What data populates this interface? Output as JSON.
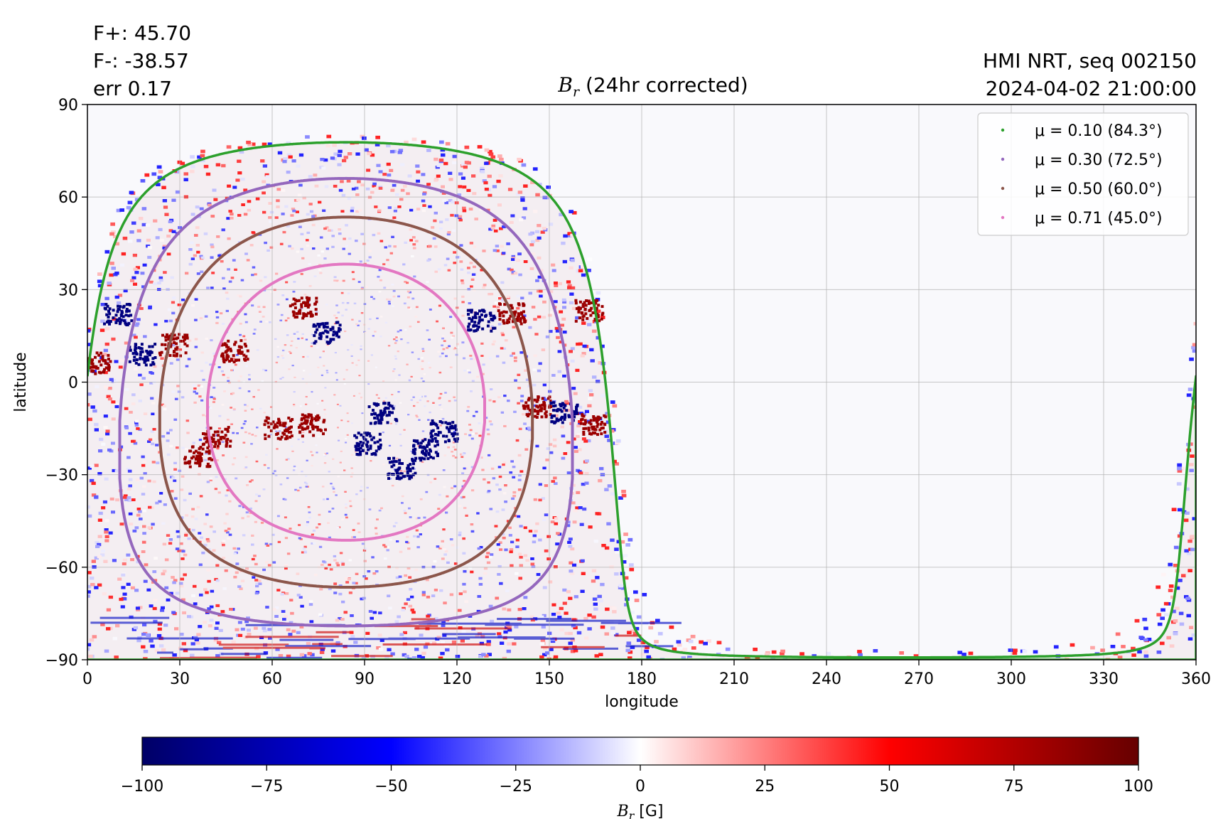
{
  "header": {
    "flux_pos": "F+: 45.70",
    "flux_neg": "F-: -38.57",
    "err": "err 0.17",
    "instrument": "HMI NRT, seq 002150",
    "datetime": "2024-04-02 21:00:00"
  },
  "chart_data": {
    "type": "heatmap",
    "title_symbol": "B",
    "title_sub": "r",
    "title_rest": " (24hr corrected)",
    "xlabel": "longitude",
    "ylabel": "latitude",
    "xlim": [
      0,
      360
    ],
    "ylim": [
      -90,
      90
    ],
    "xticks": [
      0,
      30,
      60,
      90,
      120,
      150,
      180,
      210,
      240,
      270,
      300,
      330,
      360
    ],
    "yticks": [
      -90,
      -60,
      -30,
      0,
      30,
      60,
      90
    ],
    "xtick_labels": [
      "0",
      "30",
      "60",
      "90",
      "120",
      "150",
      "180",
      "210",
      "240",
      "270",
      "300",
      "330",
      "360"
    ],
    "ytick_labels": [
      "−90",
      "−60",
      "−30",
      "0",
      "30",
      "60",
      "90"
    ],
    "grid": true,
    "legend_position": "top-right",
    "disk_center": {
      "lon": 84,
      "lat": -6.5
    },
    "series": [
      {
        "name": "μ = 0.10 (84.3°)",
        "mu": 0.1,
        "angle_deg": 84.3,
        "color": "#2ca02c"
      },
      {
        "name": "μ = 0.30 (72.5°)",
        "mu": 0.3,
        "angle_deg": 72.5,
        "color": "#9467bd"
      },
      {
        "name": "μ = 0.50 (60.0°)",
        "mu": 0.5,
        "angle_deg": 60.0,
        "color": "#8c564b"
      },
      {
        "name": "μ = 0.71 (45.0°)",
        "mu": 0.71,
        "angle_deg": 45.0,
        "color": "#e377c2"
      }
    ],
    "active_regions": [
      {
        "lon": 10,
        "lat": 22,
        "polarity": -1
      },
      {
        "lon": 18,
        "lat": 9,
        "polarity": -1
      },
      {
        "lon": 28,
        "lat": 12,
        "polarity": 1
      },
      {
        "lon": 3,
        "lat": 6,
        "polarity": 1
      },
      {
        "lon": 48,
        "lat": 10,
        "polarity": 1
      },
      {
        "lon": 36,
        "lat": -24,
        "polarity": 1
      },
      {
        "lon": 42,
        "lat": -18,
        "polarity": 1
      },
      {
        "lon": 62,
        "lat": -15,
        "polarity": 1
      },
      {
        "lon": 73,
        "lat": -14,
        "polarity": 1
      },
      {
        "lon": 78,
        "lat": 16,
        "polarity": -1
      },
      {
        "lon": 70,
        "lat": 24,
        "polarity": 1
      },
      {
        "lon": 96,
        "lat": -10,
        "polarity": -1
      },
      {
        "lon": 91,
        "lat": -20,
        "polarity": -1
      },
      {
        "lon": 102,
        "lat": -28,
        "polarity": -1
      },
      {
        "lon": 110,
        "lat": -22,
        "polarity": -1
      },
      {
        "lon": 116,
        "lat": -16,
        "polarity": -1
      },
      {
        "lon": 128,
        "lat": 20,
        "polarity": -1
      },
      {
        "lon": 138,
        "lat": 22,
        "polarity": 1
      },
      {
        "lon": 146,
        "lat": -8,
        "polarity": 1
      },
      {
        "lon": 155,
        "lat": -10,
        "polarity": -1
      },
      {
        "lon": 164,
        "lat": -14,
        "polarity": 1
      },
      {
        "lon": 163,
        "lat": 23,
        "polarity": 1
      }
    ],
    "colorbar": {
      "label_symbol": "B",
      "label_sub": "r",
      "label_unit": " [G]",
      "vmin": -100,
      "vmax": 100,
      "ticks": [
        -100,
        -75,
        -50,
        -25,
        0,
        25,
        50,
        75,
        100
      ],
      "tick_labels": [
        "−100",
        "−75",
        "−50",
        "−25",
        "0",
        "25",
        "50",
        "75",
        "100"
      ],
      "colors": [
        "#000066",
        "#0000ff",
        "#ffffff",
        "#ff0000",
        "#660000"
      ]
    }
  }
}
